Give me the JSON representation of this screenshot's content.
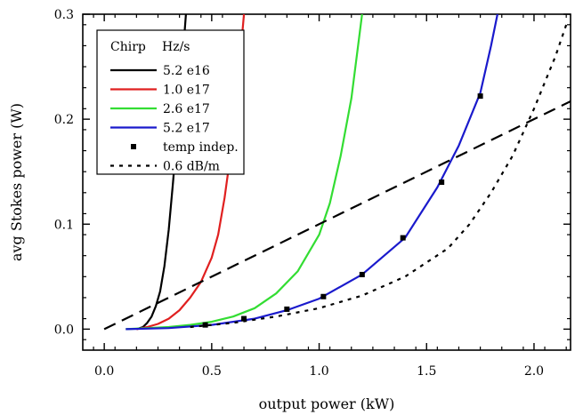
{
  "chart_data": {
    "type": "line",
    "xlabel": "output power (kW)",
    "ylabel": "avg Stokes power (W)",
    "xlim": [
      -0.1,
      2.17
    ],
    "ylim": [
      -0.02,
      0.3
    ],
    "x_ticks": [
      0.0,
      0.5,
      1.0,
      1.5,
      2.0
    ],
    "x_tick_labels": [
      "0.0",
      "0.5",
      "1.0",
      "1.5",
      "2.0"
    ],
    "y_ticks": [
      0.0,
      0.1,
      0.2,
      0.3
    ],
    "y_tick_labels": [
      "0.0",
      "0.1",
      "0.2",
      "0.3"
    ],
    "legend": {
      "title_left": "Chirp",
      "title_right": "Hz/s",
      "placement": "top-left"
    },
    "series": [
      {
        "name": "5.2 e16",
        "color": "#000000",
        "style": "solid",
        "x": [
          0.15,
          0.18,
          0.2,
          0.22,
          0.24,
          0.26,
          0.28,
          0.3,
          0.32,
          0.34,
          0.36,
          0.38
        ],
        "y": [
          0.0,
          0.002,
          0.006,
          0.012,
          0.022,
          0.036,
          0.06,
          0.095,
          0.14,
          0.19,
          0.245,
          0.3
        ]
      },
      {
        "name": "1.0 e17",
        "color": "#e02020",
        "style": "solid",
        "x": [
          0.15,
          0.2,
          0.25,
          0.3,
          0.35,
          0.4,
          0.45,
          0.5,
          0.53,
          0.56,
          0.59,
          0.62,
          0.65
        ],
        "y": [
          0.0,
          0.002,
          0.005,
          0.01,
          0.018,
          0.03,
          0.045,
          0.068,
          0.09,
          0.125,
          0.17,
          0.23,
          0.3
        ]
      },
      {
        "name": "2.6 e17",
        "color": "#33dd33",
        "style": "solid",
        "x": [
          0.1,
          0.2,
          0.3,
          0.4,
          0.5,
          0.6,
          0.7,
          0.8,
          0.9,
          1.0,
          1.05,
          1.1,
          1.15,
          1.2
        ],
        "y": [
          0.0,
          0.001,
          0.002,
          0.004,
          0.007,
          0.012,
          0.02,
          0.034,
          0.055,
          0.09,
          0.12,
          0.165,
          0.22,
          0.3
        ]
      },
      {
        "name": "5.2 e17",
        "color": "#1a1acc",
        "style": "solid",
        "x": [
          0.1,
          0.3,
          0.5,
          0.7,
          0.85,
          1.0,
          1.2,
          1.4,
          1.55,
          1.65,
          1.75,
          1.8,
          1.83
        ],
        "y": [
          0.0,
          0.001,
          0.004,
          0.01,
          0.018,
          0.029,
          0.052,
          0.087,
          0.135,
          0.175,
          0.225,
          0.27,
          0.3
        ]
      },
      {
        "name": "temp indep.",
        "color": "#000000",
        "style": "markers",
        "x": [
          0.47,
          0.65,
          0.85,
          1.02,
          1.2,
          1.39,
          1.57,
          1.75
        ],
        "y": [
          0.004,
          0.01,
          0.019,
          0.031,
          0.052,
          0.087,
          0.14,
          0.222
        ]
      },
      {
        "name": "0.6 dB/m",
        "color": "#000000",
        "style": "dotted",
        "x": [
          0.4,
          0.6,
          0.8,
          1.0,
          1.2,
          1.4,
          1.6,
          1.7,
          1.8,
          1.9,
          2.0,
          2.1,
          2.15
        ],
        "y": [
          0.002,
          0.006,
          0.012,
          0.02,
          0.032,
          0.05,
          0.077,
          0.1,
          0.13,
          0.165,
          0.21,
          0.26,
          0.29
        ]
      },
      {
        "name": "",
        "color": "#000000",
        "style": "dashed",
        "x": [
          0.0,
          2.17
        ],
        "y": [
          0.0,
          0.217
        ]
      }
    ]
  }
}
